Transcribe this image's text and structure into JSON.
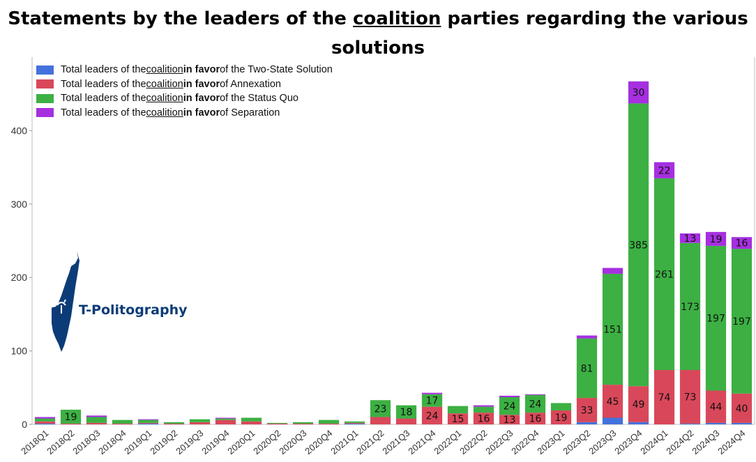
{
  "title": {
    "pre": "Statements by the leaders of the ",
    "underlined": "coalition",
    "post": " parties regarding the various solutions"
  },
  "legend": {
    "items": [
      {
        "pre": "Total leaders of the ",
        "u": "coalition",
        "b": " in favor",
        "post": " of the Two-State Solution",
        "color": "#4472dc"
      },
      {
        "pre": "Total leaders of the ",
        "u": "coalition",
        "b": " in favor",
        "post": " of Annexation",
        "color": "#d9485a"
      },
      {
        "pre": "Total leaders of the ",
        "u": "coalition",
        "b": " in favor",
        "post": " of the Status Quo",
        "color": "#3cb043"
      },
      {
        "pre": "Total leaders of the ",
        "u": "coalition",
        "b": " in favor",
        "post": " of Separation",
        "color": "#a62fe0"
      }
    ]
  },
  "logo": {
    "text": "T-Politography",
    "color": "#0b3c77"
  },
  "chart_data": {
    "type": "bar",
    "stacked": true,
    "title": "Statements by the leaders of the coalition parties regarding the various solutions",
    "xlabel": "",
    "ylabel": "",
    "ylim": [
      0,
      500
    ],
    "yticks": [
      0,
      100,
      200,
      300,
      400
    ],
    "grid": false,
    "legend_position": "top-left",
    "categories": [
      "2018Q1",
      "2018Q2",
      "2018Q3",
      "2018Q4",
      "2019Q1",
      "2019Q2",
      "2019Q3",
      "2019Q4",
      "2020Q1",
      "2020Q2",
      "2020Q3",
      "2020Q4",
      "2021Q1",
      "2021Q2",
      "2021Q3",
      "2021Q4",
      "2022Q1",
      "2022Q2",
      "2022Q3",
      "2022Q4",
      "2023Q1",
      "2023Q2",
      "2023Q3",
      "2023Q4",
      "2024Q1",
      "2024Q2",
      "2024Q3",
      "2024Q4"
    ],
    "series": [
      {
        "name": "Total leaders of the coalition in favor of the Two-State Solution",
        "color": "#4472dc",
        "values": [
          1,
          0,
          0,
          0,
          1,
          0,
          0,
          0,
          0,
          0,
          0,
          0,
          1,
          0,
          0,
          0,
          0,
          0,
          0,
          0,
          0,
          3,
          9,
          3,
          0,
          1,
          2,
          2
        ],
        "labels": [
          null,
          null,
          null,
          null,
          null,
          null,
          null,
          null,
          null,
          null,
          null,
          null,
          null,
          null,
          null,
          null,
          null,
          null,
          null,
          null,
          null,
          null,
          null,
          null,
          null,
          null,
          null,
          null
        ]
      },
      {
        "name": "Total leaders of the coalition in favor of Annexation",
        "color": "#d9485a",
        "values": [
          3,
          1,
          2,
          1,
          1,
          1,
          3,
          6,
          4,
          1,
          1,
          1,
          1,
          10,
          8,
          24,
          15,
          16,
          13,
          16,
          19,
          33,
          45,
          49,
          74,
          73,
          44,
          40
        ],
        "labels": [
          null,
          null,
          null,
          null,
          null,
          null,
          null,
          null,
          null,
          null,
          null,
          null,
          null,
          "",
          "",
          "24",
          "15",
          "16",
          "13",
          "16",
          "19",
          "33",
          "45",
          "49",
          "74",
          "73",
          "44",
          "40"
        ]
      },
      {
        "name": "Total leaders of the coalition in favor of the Status Quo",
        "color": "#3cb043",
        "values": [
          4,
          19,
          8,
          5,
          4,
          2,
          4,
          2,
          5,
          1,
          2,
          5,
          2,
          23,
          18,
          17,
          10,
          8,
          24,
          24,
          10,
          81,
          151,
          385,
          261,
          173,
          197,
          197
        ],
        "labels": [
          null,
          "19",
          null,
          null,
          null,
          null,
          null,
          null,
          null,
          null,
          null,
          null,
          null,
          "23",
          "18",
          "17",
          null,
          null,
          "24",
          "24",
          null,
          "81",
          "151",
          "385",
          "261",
          "173",
          "197",
          "197"
        ]
      },
      {
        "name": "Total leaders of the coalition in favor of Separation",
        "color": "#a62fe0",
        "values": [
          2,
          0,
          2,
          0,
          1,
          0,
          0,
          1,
          0,
          0,
          0,
          0,
          0,
          0,
          0,
          2,
          0,
          2,
          2,
          1,
          0,
          4,
          8,
          30,
          22,
          13,
          19,
          16
        ],
        "labels": [
          null,
          null,
          null,
          null,
          null,
          null,
          null,
          null,
          null,
          null,
          null,
          null,
          null,
          null,
          null,
          null,
          null,
          null,
          null,
          null,
          null,
          null,
          null,
          "30",
          "22",
          "13",
          "19",
          "16"
        ]
      }
    ]
  }
}
